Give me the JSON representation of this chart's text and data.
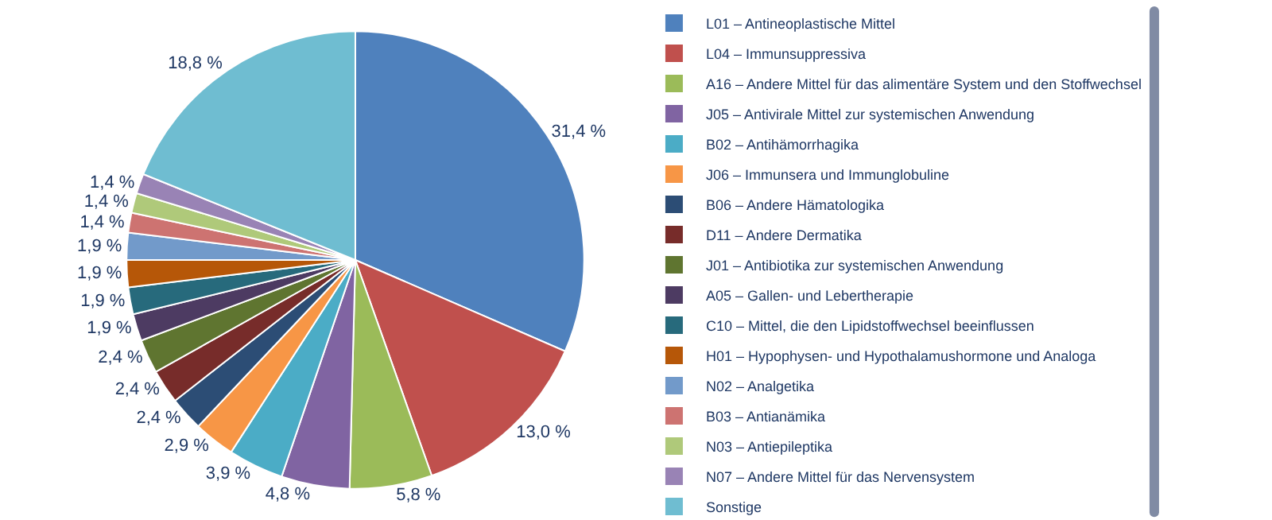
{
  "chart_data": {
    "type": "pie",
    "categories": [
      "L01 – Antineoplastische Mittel",
      "L04 – Immunsuppressiva",
      "A16 – Andere Mittel für das alimentäre System und den Stoffwechsel",
      "J05 – Antivirale Mittel zur systemischen Anwendung",
      "B02 – Antihämorrhagika",
      "J06 – Immunsera und Immunglobuline",
      "B06 – Andere Hämatologika",
      "D11 – Andere Dermatika",
      "J01 – Antibiotika zur systemischen Anwendung",
      "A05 – Gallen- und Lebertherapie",
      "C10 – Mittel, die den Lipidstoffwechsel beeinflussen",
      "H01 – Hypophysen- und Hypothalamushormone und Analoga",
      "N02 – Analgetika",
      "B03 – Antianämika",
      "N03 – Antiepileptika",
      "N07 – Andere Mittel für das Nervensystem",
      "Sonstige"
    ],
    "values": [
      31.4,
      13.0,
      5.8,
      4.8,
      3.9,
      2.9,
      2.4,
      2.4,
      2.4,
      1.9,
      1.9,
      1.9,
      1.9,
      1.4,
      1.4,
      1.4,
      18.8
    ],
    "value_labels": [
      "31,4 %",
      "13,0 %",
      "5,8 %",
      "4,8 %",
      "3,9 %",
      "2,9 %",
      "2,4 %",
      "2,4 %",
      "2,4 %",
      "1,9 %",
      "1,9 %",
      "1,9 %",
      "1,9 %",
      "1,4 %",
      "1,4 %",
      "1,4 %",
      "18,8 %"
    ],
    "colors": [
      "#4f81bd",
      "#c0504d",
      "#9bbb59",
      "#8064a2",
      "#4bacc6",
      "#f79646",
      "#2c4d75",
      "#772c2a",
      "#5f7530",
      "#4d3b62",
      "#276a7c",
      "#b65708",
      "#729aca",
      "#cd7371",
      "#afc97a",
      "#9983b5",
      "#6fbdd1"
    ],
    "legend": "right"
  }
}
